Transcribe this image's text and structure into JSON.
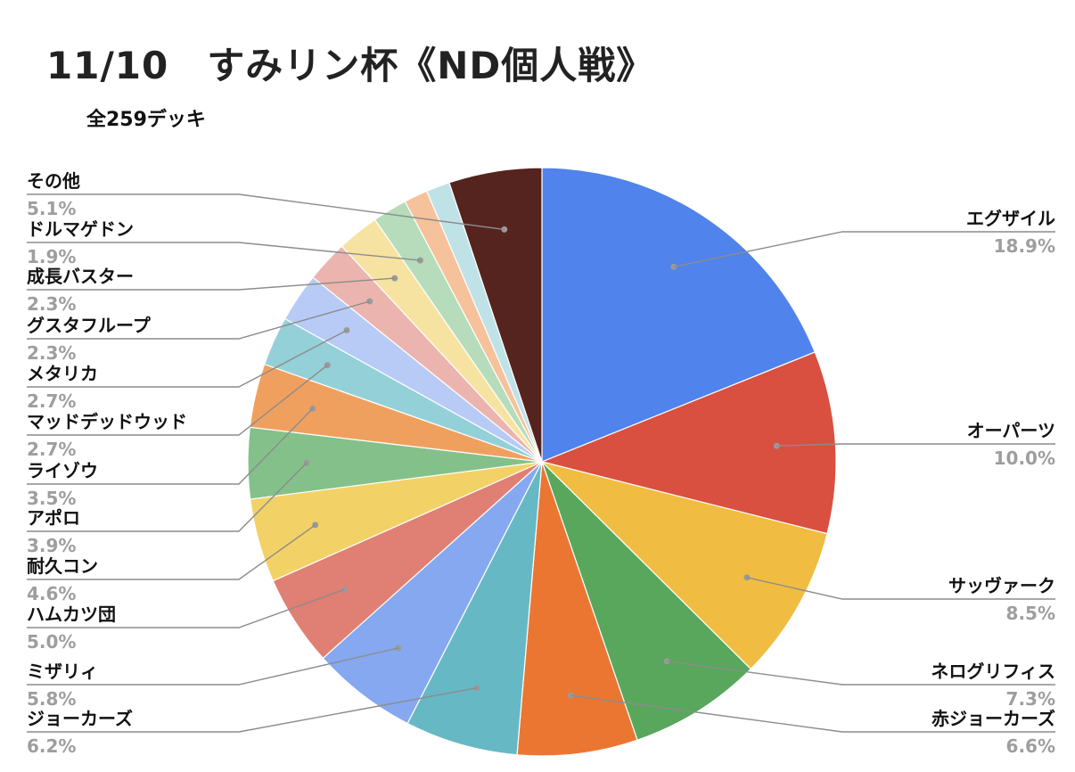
{
  "chart_data": {
    "type": "pie",
    "title": "11/10　すみリン杯《ND個人戦》",
    "subtitle": "全259デッキ",
    "slices": [
      {
        "label": "エグザイル",
        "pct_text": "18.9%",
        "value": 18.9,
        "color": "#5083eb"
      },
      {
        "label": "オーパーツ",
        "pct_text": "10.0%",
        "value": 10.0,
        "color": "#d95040"
      },
      {
        "label": "サッヴァーク",
        "pct_text": "8.5%",
        "value": 8.5,
        "color": "#f0bd42"
      },
      {
        "label": "ネログリフィス",
        "pct_text": "7.3%",
        "value": 7.3,
        "color": "#58a75c"
      },
      {
        "label": "赤ジョーカーズ",
        "pct_text": "6.6%",
        "value": 6.6,
        "color": "#eb7632"
      },
      {
        "label": "ジョーカーズ",
        "pct_text": "6.2%",
        "value": 6.2,
        "color": "#66b9c4"
      },
      {
        "label": "ミザリィ",
        "pct_text": "5.8%",
        "value": 5.8,
        "color": "#86a8f0"
      },
      {
        "label": "ハムカツ団",
        "pct_text": "5.0%",
        "value": 5.0,
        "color": "#e07f73"
      },
      {
        "label": "耐久コン",
        "pct_text": "4.6%",
        "value": 4.6,
        "color": "#f2d267"
      },
      {
        "label": "アポロ",
        "pct_text": "3.9%",
        "value": 3.9,
        "color": "#84c18a"
      },
      {
        "label": "ライゾウ",
        "pct_text": "3.5%",
        "value": 3.5,
        "color": "#f0a05e"
      },
      {
        "label": "マッドデッドウッド",
        "pct_text": "2.7%",
        "value": 2.7,
        "color": "#94d0d7"
      },
      {
        "label": "メタリカ",
        "pct_text": "2.7%",
        "value": 2.7,
        "color": "#b8cbf6"
      },
      {
        "label": "グスタフループ",
        "pct_text": "2.3%",
        "value": 2.3,
        "color": "#ecb4ae"
      },
      {
        "label": "成長バスター",
        "pct_text": "2.3%",
        "value": 2.3,
        "color": "#f7e3a1"
      },
      {
        "label": "ドルマゲドン",
        "pct_text": "1.9%",
        "value": 1.9,
        "color": "#b6dcbb"
      },
      {
        "label": "",
        "pct_text": "",
        "value": 1.3,
        "color": "#f5c29b"
      },
      {
        "label": "",
        "pct_text": "",
        "value": 1.3,
        "color": "#bfe2e7"
      },
      {
        "label": "その他",
        "pct_text": "5.1%",
        "value": 5.1,
        "color": "#55241f"
      }
    ]
  }
}
